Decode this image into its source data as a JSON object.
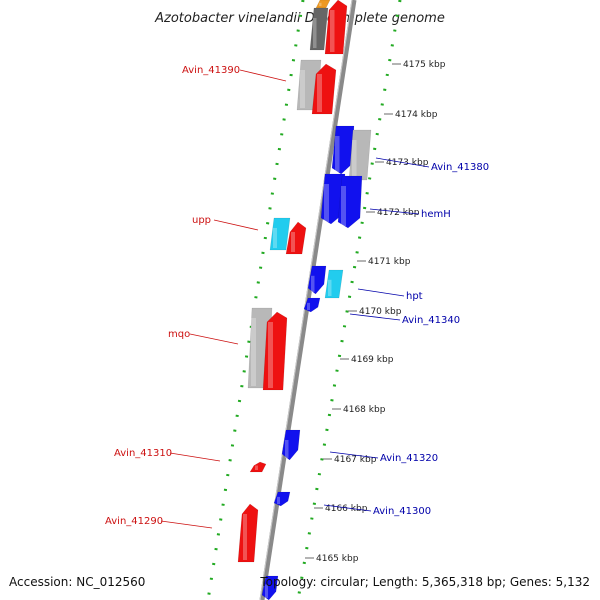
{
  "title": "Azotobacter vinelandii DJ, complete genome",
  "footer": {
    "accession": "Accession: NC_012560",
    "summary": "Topology: circular; Length: 5,365,318 bp; Genes: 5,132"
  },
  "colors": {
    "forward_gene": "#ee1111",
    "reverse_gene": "#1111ee",
    "rna_light": "#22ccee",
    "pseudo_grey": "#b8b8b8",
    "dark_grey": "#666666",
    "backbone": "#8a8a8a",
    "ring": "#22aa22",
    "left_label": "#cc1111",
    "right_label": "#0000aa"
  },
  "ticks": [
    "4175 kbp",
    "4174 kbp",
    "4173 kbp",
    "4172 kbp",
    "4171 kbp",
    "4170 kbp",
    "4169 kbp",
    "4168 kbp",
    "4167 kbp",
    "4166 kbp",
    "4165 kbp"
  ],
  "labels_left": [
    "Avin_41390",
    "upp",
    "mqo",
    "Avin_41310",
    "Avin_41290"
  ],
  "labels_right": [
    "Avin_41380",
    "hemH",
    "hpt",
    "Avin_41340",
    "Avin_41320",
    "Avin_41300"
  ]
}
